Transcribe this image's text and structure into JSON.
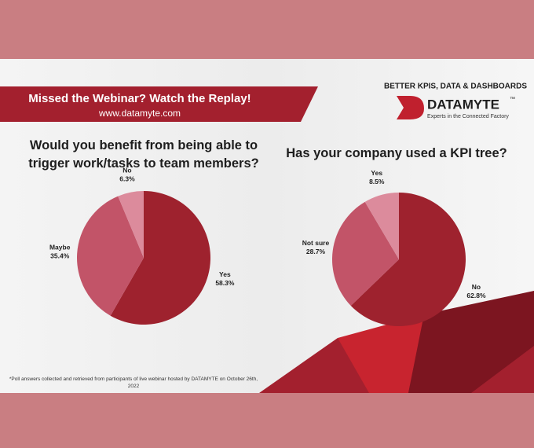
{
  "header": {
    "banner": "Missed the Webinar? Watch the Replay!",
    "url": "www.datamyte.com",
    "tagline": "BETTER KPIS, DATA & DASHBOARDS",
    "logo": "DATAMYTE",
    "trademark": "™",
    "logo_subtitle": "Experts in the Connected Factory"
  },
  "footnote": "*Poll answers  collected and retrieved from participants of live webinar  hosted by DATAMYTE on October 26th, 2022",
  "chart_data": [
    {
      "type": "pie",
      "title": "Would you benefit from being able to trigger work/tasks to team members?",
      "categories": [
        "Yes",
        "Maybe",
        "No"
      ],
      "values": [
        58.3,
        35.4,
        6.3
      ],
      "value_labels": [
        "58.3%",
        "35.4%",
        "6.3%"
      ],
      "colors": [
        "#9e222e",
        "#c25468",
        "#dc8b9c"
      ]
    },
    {
      "type": "pie",
      "title": "Has your company used a KPI tree?",
      "categories": [
        "No",
        "Not sure",
        "Yes"
      ],
      "values": [
        62.8,
        28.7,
        8.5
      ],
      "value_labels": [
        "62.8%",
        "28.7%",
        "8.5%"
      ],
      "colors": [
        "#9e222e",
        "#c25468",
        "#dc8b9c"
      ]
    }
  ]
}
